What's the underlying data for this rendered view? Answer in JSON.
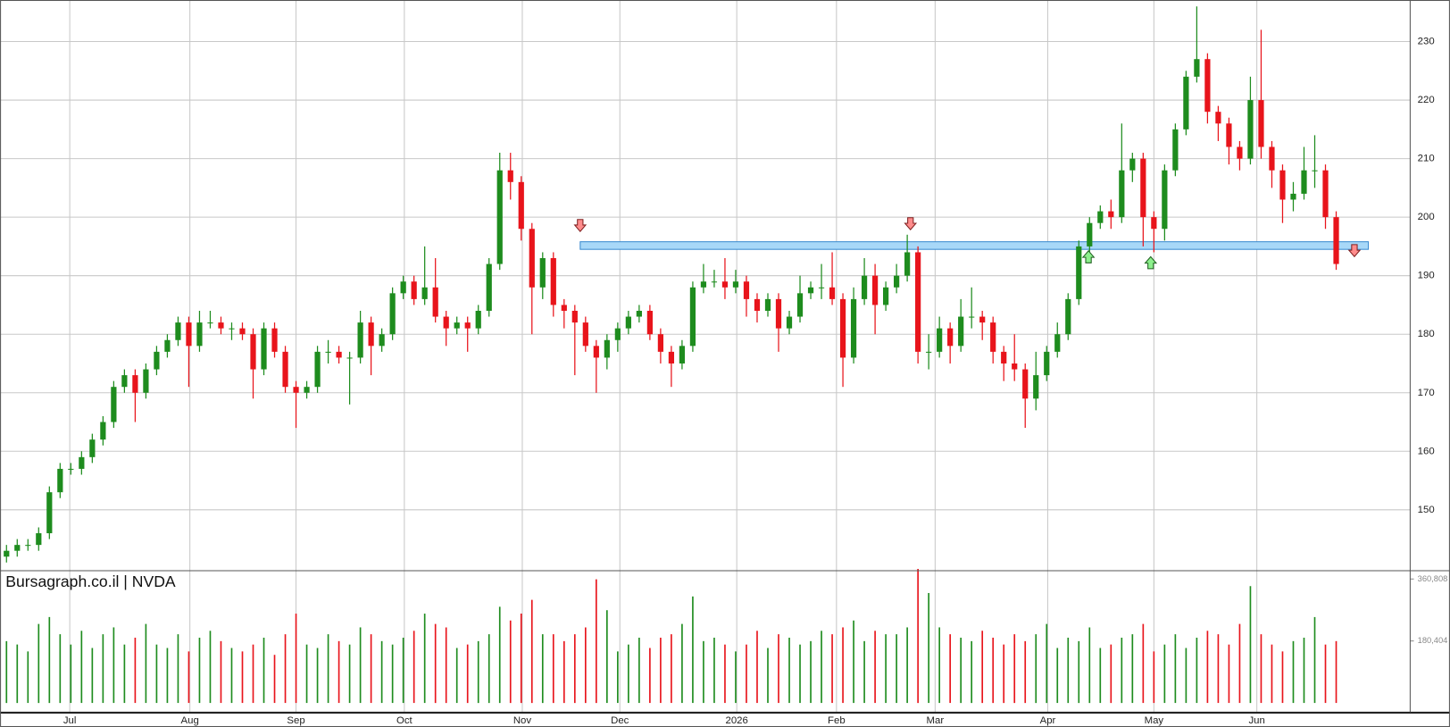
{
  "chart_data": {
    "type": "candlestick",
    "title": "Bursagraph.co.il | NVDA",
    "up_color": "#1e8c1e",
    "down_color": "#e8141b",
    "grid": true,
    "open": [
      142,
      143,
      144,
      144,
      146,
      153,
      157,
      157,
      159,
      162,
      165,
      171,
      173,
      170,
      174,
      177,
      179,
      182,
      178,
      182,
      182,
      181,
      181,
      180,
      174,
      181,
      177,
      171,
      170,
      171,
      177,
      177,
      176,
      176,
      182,
      178,
      180,
      187,
      189,
      186,
      188,
      183,
      181,
      182,
      181,
      184,
      192,
      208,
      206,
      198,
      188,
      193,
      185,
      184,
      182,
      178,
      176,
      179,
      181,
      183,
      184,
      180,
      177,
      175,
      178,
      188,
      189,
      189,
      188,
      189,
      186,
      184,
      186,
      181,
      183,
      187,
      188,
      188,
      186,
      176,
      186,
      190,
      185,
      188,
      190,
      194,
      177,
      177,
      181,
      178,
      183,
      183,
      182,
      177,
      175,
      174,
      169,
      173,
      177,
      180,
      186,
      195,
      199,
      201,
      200,
      208,
      210,
      200,
      198,
      208,
      215,
      224,
      227,
      218,
      216,
      212,
      210,
      220,
      212,
      208,
      203,
      204,
      208,
      208,
      200
    ],
    "high": [
      144,
      145,
      145,
      147,
      154,
      158,
      158,
      160,
      163,
      166,
      172,
      174,
      174,
      175,
      178,
      180,
      183,
      183,
      184,
      184,
      183,
      182,
      182,
      181,
      182,
      182,
      178,
      172,
      172,
      178,
      179,
      178,
      177,
      184,
      183,
      181,
      188,
      190,
      190,
      195,
      193,
      184,
      183,
      183,
      185,
      193,
      211,
      211,
      207,
      199,
      194,
      194,
      186,
      185,
      183,
      179,
      180,
      182,
      184,
      185,
      185,
      181,
      178,
      179,
      189,
      192,
      191,
      193,
      191,
      190,
      187,
      187,
      187,
      184,
      190,
      189,
      192,
      194,
      187,
      188,
      193,
      192,
      189,
      192,
      197,
      195,
      180,
      183,
      182,
      186,
      188,
      184,
      183,
      178,
      180,
      175,
      177,
      178,
      182,
      187,
      196,
      200,
      202,
      203,
      216,
      211,
      211,
      201,
      209,
      216,
      225,
      236,
      228,
      219,
      217,
      213,
      224,
      232,
      213,
      209,
      206,
      212,
      214,
      209,
      201
    ],
    "low": [
      141,
      142,
      143,
      143,
      145,
      152,
      156,
      156,
      158,
      161,
      164,
      170,
      165,
      169,
      173,
      176,
      178,
      171,
      177,
      181,
      180,
      179,
      179,
      169,
      173,
      176,
      170,
      164,
      169,
      170,
      175,
      175,
      168,
      175,
      173,
      177,
      179,
      186,
      185,
      185,
      182,
      178,
      180,
      177,
      180,
      183,
      191,
      203,
      196,
      180,
      186,
      183,
      181,
      173,
      177,
      170,
      174,
      177,
      180,
      182,
      179,
      175,
      171,
      174,
      177,
      187,
      188,
      186,
      187,
      183,
      182,
      183,
      177,
      180,
      182,
      186,
      186,
      185,
      171,
      175,
      185,
      180,
      184,
      187,
      189,
      175,
      174,
      176,
      175,
      177,
      181,
      179,
      175,
      172,
      172,
      164,
      167,
      172,
      176,
      179,
      185,
      194,
      198,
      198,
      199,
      206,
      195,
      194,
      196,
      207,
      214,
      223,
      216,
      213,
      209,
      208,
      209,
      210,
      205,
      199,
      201,
      203,
      205,
      198,
      191
    ],
    "close": [
      143,
      144,
      144,
      146,
      153,
      157,
      157,
      159,
      162,
      165,
      171,
      173,
      170,
      174,
      177,
      179,
      182,
      178,
      182,
      182,
      181,
      181,
      180,
      174,
      181,
      177,
      171,
      170,
      171,
      177,
      177,
      176,
      176,
      182,
      178,
      180,
      187,
      189,
      186,
      188,
      183,
      181,
      182,
      181,
      184,
      192,
      208,
      206,
      198,
      188,
      193,
      185,
      184,
      182,
      178,
      176,
      179,
      181,
      183,
      184,
      180,
      177,
      175,
      178,
      188,
      189,
      189,
      188,
      189,
      186,
      184,
      186,
      181,
      183,
      187,
      188,
      188,
      186,
      176,
      186,
      190,
      185,
      188,
      190,
      194,
      177,
      177,
      181,
      178,
      183,
      183,
      182,
      177,
      175,
      174,
      169,
      173,
      177,
      180,
      186,
      195,
      199,
      201,
      200,
      208,
      210,
      200,
      198,
      208,
      215,
      224,
      227,
      218,
      216,
      212,
      210,
      220,
      212,
      208,
      203,
      204,
      208,
      208,
      200,
      192
    ],
    "volume": [
      180000,
      170000,
      150000,
      230000,
      250000,
      200000,
      170000,
      210000,
      160000,
      200000,
      220000,
      170000,
      190000,
      230000,
      170000,
      160000,
      200000,
      150000,
      190000,
      210000,
      180000,
      160000,
      150000,
      170000,
      190000,
      140000,
      200000,
      260000,
      170000,
      160000,
      200000,
      180000,
      170000,
      220000,
      200000,
      180000,
      170000,
      190000,
      210000,
      260000,
      230000,
      220000,
      160000,
      170000,
      180000,
      200000,
      280000,
      240000,
      260000,
      300000,
      200000,
      200000,
      180000,
      200000,
      220000,
      360000,
      270000,
      150000,
      170000,
      190000,
      160000,
      190000,
      200000,
      230000,
      310000,
      180000,
      190000,
      170000,
      150000,
      170000,
      210000,
      160000,
      200000,
      190000,
      170000,
      180000,
      210000,
      200000,
      220000,
      240000,
      180000,
      210000,
      200000,
      200000,
      220000,
      390000,
      320000,
      220000,
      200000,
      190000,
      180000,
      210000,
      190000,
      170000,
      200000,
      180000,
      200000,
      230000,
      160000,
      190000,
      180000,
      220000,
      160000,
      170000,
      190000,
      200000,
      230000,
      150000,
      170000,
      200000,
      160000,
      190000,
      210000,
      200000,
      170000,
      230000,
      340000,
      200000,
      170000,
      150000,
      180000,
      190000,
      250000,
      170000,
      180000
    ],
    "ylim": [
      139.6,
      237.1
    ],
    "yticks": [
      150,
      160,
      170,
      180,
      190,
      200,
      210,
      220,
      230
    ],
    "volume_ylim": [
      0,
      385000
    ],
    "volume_ticks": [
      {
        "value": 360808,
        "label": "360,808"
      },
      {
        "value": 180404,
        "label": "180,404"
      }
    ],
    "xlim": [
      -0.6,
      130.9
    ],
    "xticks": [
      {
        "value": 5.9,
        "label": "Jul"
      },
      {
        "value": 17.1,
        "label": "Aug"
      },
      {
        "value": 27,
        "label": "Sep"
      },
      {
        "value": 37.1,
        "label": "Oct"
      },
      {
        "value": 48.1,
        "label": "Nov"
      },
      {
        "value": 57.2,
        "label": "Dec"
      },
      {
        "value": 68.1,
        "label": "2026"
      },
      {
        "value": 77.4,
        "label": "Feb"
      },
      {
        "value": 86.6,
        "label": "Mar"
      },
      {
        "value": 97.1,
        "label": "Apr"
      },
      {
        "value": 107,
        "label": "May"
      },
      {
        "value": 116.6,
        "label": "Jun"
      }
    ],
    "zone": {
      "x_start": 53.5,
      "x_end": 127,
      "low": 194.5,
      "high": 195.8,
      "color": "#a8d8f8"
    },
    "signals": [
      {
        "x": 53.5,
        "y": 198.5,
        "direction": "down"
      },
      {
        "x": 84.3,
        "y": 198.8,
        "direction": "down"
      },
      {
        "x": 100.9,
        "y": 193.3,
        "direction": "up"
      },
      {
        "x": 106.7,
        "y": 192.3,
        "direction": "up"
      },
      {
        "x": 125.7,
        "y": 194.2,
        "direction": "down"
      }
    ]
  }
}
